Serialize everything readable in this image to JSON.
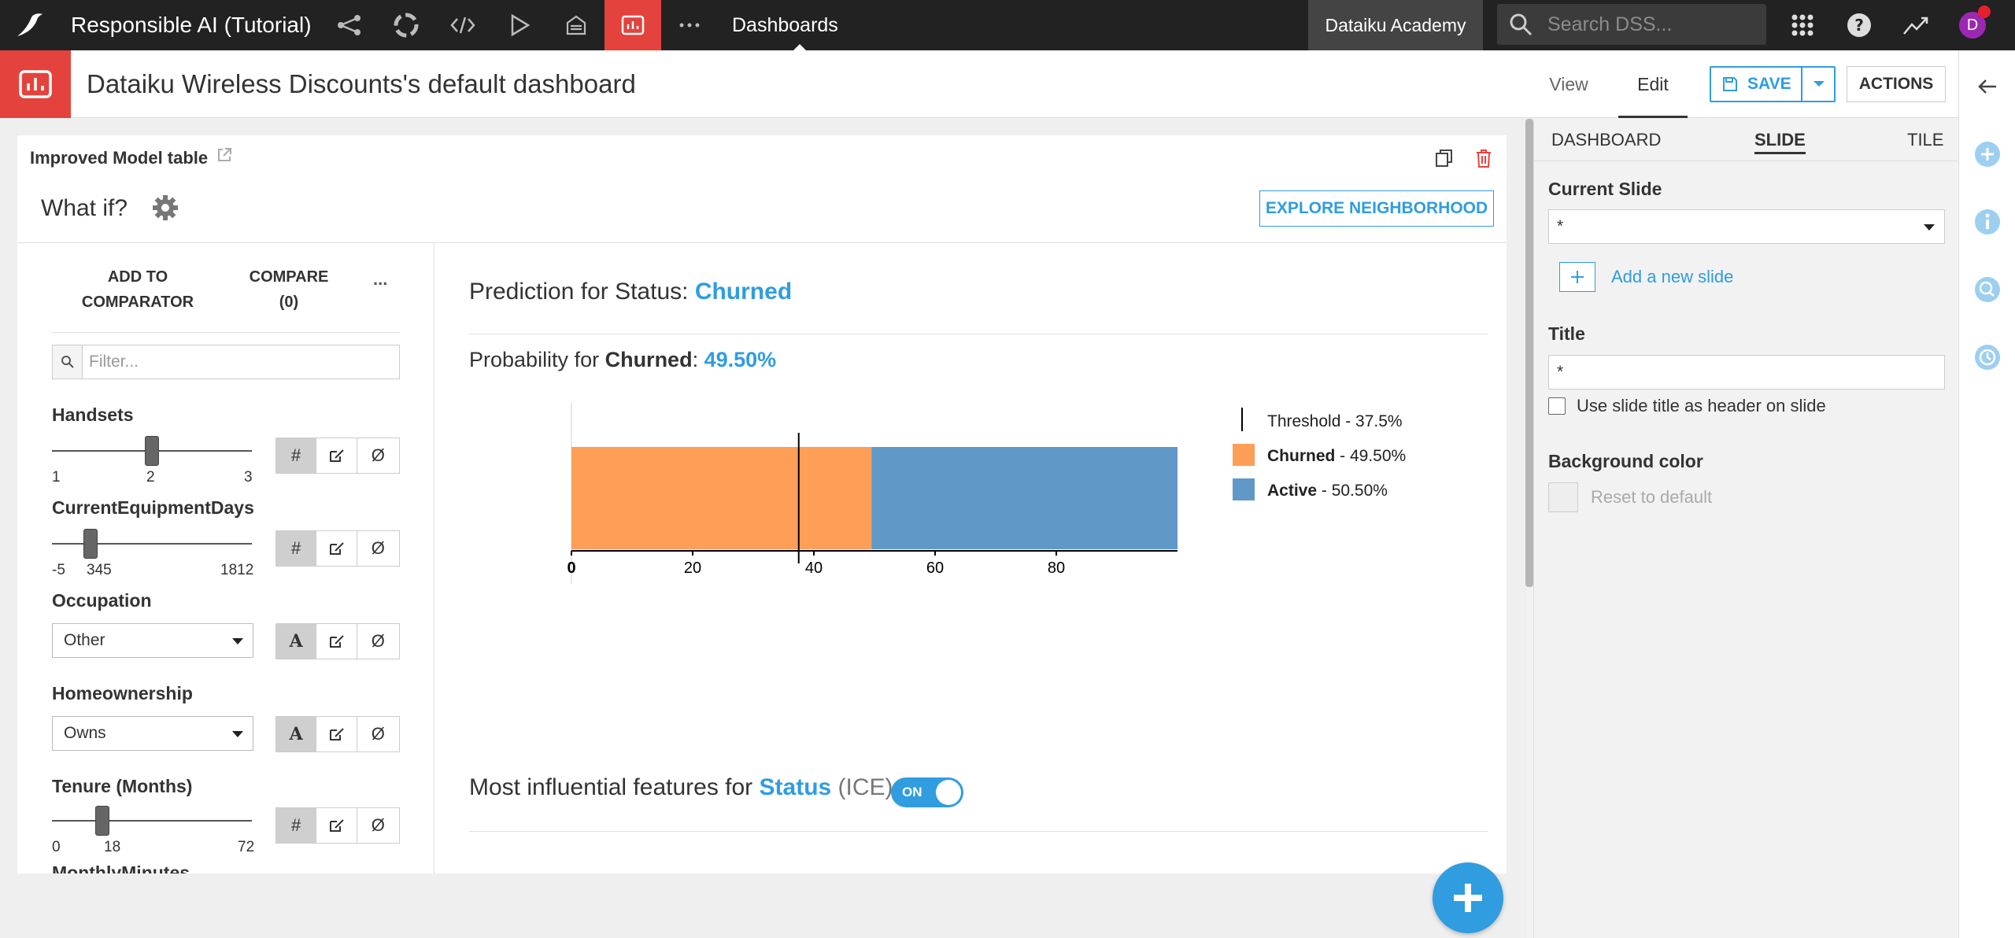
{
  "topbar": {
    "project_name": "Responsible AI (Tutorial)",
    "section": "Dashboards",
    "academy": "Dataiku Academy",
    "search_placeholder": "Search DSS...",
    "avatar_letter": "D"
  },
  "header": {
    "title": "Dataiku Wireless Discounts's default dashboard",
    "tabs": [
      "View",
      "Edit"
    ],
    "active_tab": "Edit",
    "save_label": "SAVE",
    "actions_label": "ACTIONS"
  },
  "tile": {
    "title": "Improved Model table",
    "whatif": "What if?",
    "explore_label": "EXPLORE NEIGHBORHOOD",
    "left_panel": {
      "add_to_comparator": "ADD TO COMPARATOR",
      "compare": "COMPARE (0)",
      "more": "...",
      "filter_placeholder": "Filter...",
      "features": [
        {
          "name": "Handsets",
          "type": "numeric",
          "min": "1",
          "mid": "2",
          "max": "3",
          "value": 2,
          "range": [
            1,
            3
          ]
        },
        {
          "name": "CurrentEquipmentDays",
          "type": "numeric",
          "min": "-5",
          "mid": "345",
          "max": "1812",
          "value": 345,
          "range": [
            -5,
            1812
          ]
        },
        {
          "name": "Occupation",
          "type": "categorical",
          "value": "Other"
        },
        {
          "name": "Homeownership",
          "type": "categorical",
          "value": "Owns"
        },
        {
          "name": "Tenure (Months)",
          "type": "numeric",
          "min": "0",
          "mid": "18",
          "max": "72",
          "value": 18,
          "range": [
            0,
            72
          ]
        }
      ],
      "cut_label": "MonthlyMinutes",
      "mode_hash": "#",
      "mode_text": "A",
      "mode_null": "Ø"
    },
    "prediction": {
      "title_prefix": "Prediction for Status: ",
      "predicted_class": "Churned",
      "prob_prefix": "Probability for ",
      "prob_class": "Churned",
      "prob_sep": ": ",
      "prob_value": "49.50%"
    },
    "ice": {
      "prefix": "Most influential features for ",
      "target": "Status",
      "suffix": " (ICE)",
      "toggle": "ON"
    }
  },
  "chart_data": {
    "type": "bar",
    "orientation": "horizontal-stacked",
    "series": [
      {
        "name": "Churned",
        "value": 49.5,
        "color": "#ff9e57"
      },
      {
        "name": "Active",
        "value": 50.5,
        "color": "#6099c8"
      }
    ],
    "threshold": 37.5,
    "xlim": [
      0,
      100
    ],
    "xticks": [
      "0",
      "20",
      "40",
      "60",
      "80"
    ],
    "legend": [
      {
        "label": "Threshold",
        "value": " - 37.5%"
      },
      {
        "label": "Churned",
        "value": " - 49.50%"
      },
      {
        "label": "Active",
        "value": " - 50.50%"
      }
    ],
    "legend_position": "right"
  },
  "right_panel": {
    "tabs": [
      "DASHBOARD",
      "SLIDE",
      "TILE"
    ],
    "active_tab": "SLIDE",
    "current_slide_label": "Current Slide",
    "current_slide_value": "*",
    "add_slide": "Add a new slide",
    "title_label": "Title",
    "title_value": "*",
    "use_title_checkbox": "Use slide title as header on slide",
    "bg_color_label": "Background color",
    "reset_label": "Reset to default"
  },
  "colors": {
    "accent": "#2f9de0",
    "brand_red": "#e4433d",
    "topbar": "#222222"
  }
}
